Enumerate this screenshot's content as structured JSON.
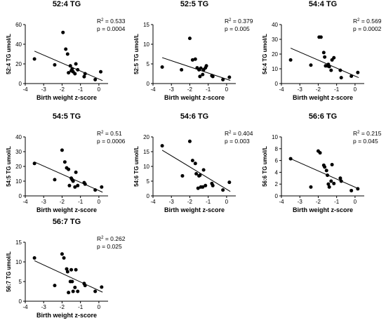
{
  "chart_data": [
    {
      "type": "scatter",
      "title": "52:4 TG",
      "xlabel": "Birth weight z-score",
      "ylabel": "52:4 TG umol/L",
      "xlim": [
        -4,
        0.5
      ],
      "ylim": [
        0,
        60
      ],
      "xticks": [
        "-4",
        "-3",
        "-2",
        "-1",
        "0"
      ],
      "yticks": [
        "0",
        "20",
        "40",
        "60"
      ],
      "r2": "0.533",
      "p": "p = 0.0004",
      "x": [
        -3.5,
        -2.4,
        -1.95,
        -1.8,
        -1.7,
        -1.65,
        -1.55,
        -1.5,
        -1.45,
        -1.4,
        -1.3,
        -1.25,
        -1.15,
        -0.8,
        -0.75,
        -0.2,
        0.1
      ],
      "y": [
        25,
        19,
        52,
        35,
        30,
        11,
        18,
        13,
        15,
        12,
        10,
        20,
        14,
        7,
        10,
        4,
        12
      ],
      "fit": {
        "x": [
          -3.5,
          0.2
        ],
        "y": [
          33,
          3
        ]
      }
    },
    {
      "type": "scatter",
      "title": "52:5 TG",
      "xlabel": "Birth weight z-score",
      "ylabel": "52:5 TG umol/L",
      "xlim": [
        -4,
        0.5
      ],
      "ylim": [
        0,
        15
      ],
      "xticks": [
        "-4",
        "-3",
        "-2",
        "-1",
        "0"
      ],
      "yticks": [
        "0",
        "5",
        "10",
        "15"
      ],
      "r2": "0.379",
      "p": "p = 0.005",
      "x": [
        -3.5,
        -2.45,
        -2.0,
        -1.85,
        -1.7,
        -1.6,
        -1.5,
        -1.45,
        -1.4,
        -1.3,
        -1.25,
        -1.15,
        -1.1,
        -0.8,
        -0.75,
        -0.2,
        0.15
      ],
      "y": [
        4.2,
        3.5,
        11.5,
        6,
        6.2,
        4,
        3.5,
        1.8,
        3.9,
        2.3,
        3.5,
        4,
        4.5,
        2,
        1.8,
        1,
        1.6
      ],
      "fit": {
        "x": [
          -3.5,
          0.2
        ],
        "y": [
          6.6,
          0.8
        ]
      }
    },
    {
      "type": "scatter",
      "title": "54:4 TG",
      "xlabel": "Birth weight z-score",
      "ylabel": "54:4 TG umol/L",
      "xlim": [
        -4,
        0.5
      ],
      "ylim": [
        0,
        40
      ],
      "xticks": [
        "-4",
        "-3",
        "-2",
        "-1",
        "0"
      ],
      "yticks": [
        "0",
        "10",
        "20",
        "30",
        "40"
      ],
      "r2": "0.569",
      "p": "p = 0.0002",
      "x": [
        -3.5,
        -2.4,
        -1.95,
        -1.85,
        -1.7,
        -1.65,
        -1.6,
        -1.5,
        -1.45,
        -1.4,
        -1.3,
        -1.25,
        -1.15,
        -0.8,
        -0.75,
        -0.2,
        0.15
      ],
      "y": [
        16,
        12.5,
        31.5,
        31.5,
        21,
        18,
        12,
        12,
        13,
        11.5,
        9,
        16,
        17.5,
        9,
        4,
        5,
        7.5
      ],
      "fit": {
        "x": [
          -3.5,
          0.2
        ],
        "y": [
          24,
          4
        ]
      }
    },
    {
      "type": "scatter",
      "title": "54:5 TG",
      "xlabel": "Birth weight z-score",
      "ylabel": "54:5 TG umol/L",
      "xlim": [
        -4,
        0.5
      ],
      "ylim": [
        0,
        40
      ],
      "xticks": [
        "-4",
        "-3",
        "-2",
        "-1",
        "0"
      ],
      "yticks": [
        "0",
        "10",
        "20",
        "30",
        "40"
      ],
      "r2": "0.51",
      "p": "p = 0.0006",
      "x": [
        -3.5,
        -2.4,
        -2.0,
        -1.85,
        -1.75,
        -1.65,
        -1.6,
        -1.5,
        -1.45,
        -1.4,
        -1.3,
        -1.25,
        -1.15,
        -0.8,
        -0.75,
        -0.2,
        0.15
      ],
      "y": [
        22,
        11,
        31,
        23,
        19,
        18,
        7,
        12,
        11,
        10,
        6,
        16,
        7,
        9,
        8,
        4,
        6
      ],
      "fit": {
        "x": [
          -3.5,
          0.2
        ],
        "y": [
          23,
          2.5
        ]
      }
    },
    {
      "type": "scatter",
      "title": "54:6 TG",
      "xlabel": "Birth weight z-score",
      "ylabel": "54:6 TG umol/L",
      "xlim": [
        -4,
        0.5
      ],
      "ylim": [
        0,
        20
      ],
      "xticks": [
        "-4",
        "-3",
        "-2",
        "-1",
        "0"
      ],
      "yticks": [
        "0",
        "5",
        "10",
        "15",
        "20"
      ],
      "r2": "0.404",
      "p": "p = 0.003",
      "x": [
        -3.5,
        -2.4,
        -2.0,
        -1.85,
        -1.7,
        -1.65,
        -1.55,
        -1.5,
        -1.45,
        -1.4,
        -1.3,
        -1.25,
        -1.15,
        -0.8,
        -0.75,
        -0.2,
        0.15
      ],
      "y": [
        17,
        6.8,
        18.5,
        12,
        11,
        7.5,
        2.6,
        6.8,
        7,
        3,
        3,
        8.8,
        3.5,
        4.2,
        3.5,
        2,
        4.6
      ],
      "fit": {
        "x": [
          -3.5,
          0.2
        ],
        "y": [
          15.5,
          1.5
        ]
      }
    },
    {
      "type": "scatter",
      "title": "56:6 TG",
      "xlabel": "Birth weight z-score",
      "ylabel": "56:6 TG umol/L",
      "xlim": [
        -4,
        0.5
      ],
      "ylim": [
        0,
        10
      ],
      "xticks": [
        "-4",
        "-3",
        "-2",
        "-1",
        "0"
      ],
      "yticks": [
        "0",
        "2",
        "4",
        "6",
        "8",
        "10"
      ],
      "r2": "0.215",
      "p": "p = 0.045",
      "x": [
        -3.5,
        -2.4,
        -2.0,
        -1.9,
        -1.7,
        -1.65,
        -1.55,
        -1.5,
        -1.45,
        -1.4,
        -1.3,
        -1.25,
        -1.15,
        -0.8,
        -0.75,
        -0.2,
        0.15
      ],
      "y": [
        6.3,
        1.5,
        7.6,
        7.3,
        5.2,
        4.9,
        4.3,
        3.5,
        2.0,
        1.5,
        2.5,
        5.3,
        2.1,
        3.0,
        2.5,
        0.9,
        1.2
      ],
      "fit": {
        "x": [
          -3.5,
          0.2
        ],
        "y": [
          6.3,
          1.2
        ]
      }
    },
    {
      "type": "scatter",
      "title": "56:7 TG",
      "xlabel": "Birth weight z-score",
      "ylabel": "56:7 TG umol/L",
      "xlim": [
        -4,
        0.5
      ],
      "ylim": [
        0,
        15
      ],
      "xticks": [
        "-4",
        "-3",
        "-2",
        "-1",
        "0"
      ],
      "yticks": [
        "0",
        "5",
        "10",
        "15"
      ],
      "r2": "0.262",
      "p": "p = 0.025",
      "x": [
        -3.5,
        -2.4,
        -2.0,
        -1.9,
        -1.75,
        -1.7,
        -1.65,
        -1.55,
        -1.5,
        -1.45,
        -1.4,
        -1.3,
        -1.25,
        -1.15,
        -0.8,
        -0.75,
        -0.2,
        0.15
      ],
      "y": [
        11,
        4,
        12,
        11,
        8.2,
        7.5,
        2.2,
        5,
        8,
        5,
        2.5,
        3.5,
        8,
        2.5,
        4.5,
        4,
        2.5,
        3.6
      ],
      "fit": {
        "x": [
          -3.5,
          0.2
        ],
        "y": [
          10.3,
          2.3
        ]
      }
    }
  ]
}
